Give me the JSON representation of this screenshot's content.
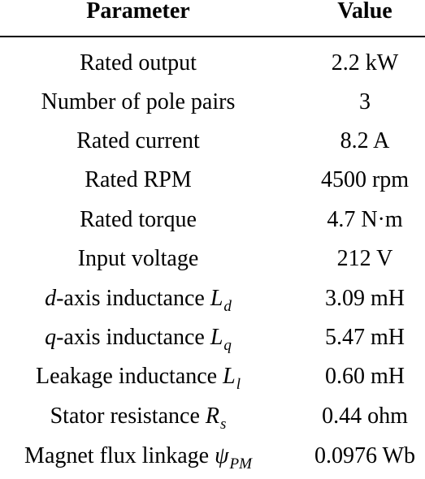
{
  "table": {
    "headers": [
      "Parameter",
      "Value"
    ],
    "rows": [
      {
        "param": "Rated output",
        "value": "2.2 kW"
      },
      {
        "param": "Number of pole pairs",
        "value": "3"
      },
      {
        "param": "Rated current",
        "value": "8.2 A"
      },
      {
        "param": "Rated RPM",
        "value": "4500 rpm"
      },
      {
        "param": "Rated torque",
        "value": "4.7 N·m"
      },
      {
        "param": "Input voltage",
        "value": "212 V"
      },
      {
        "param_prefix": "d",
        "param_text": "-axis inductance ",
        "param_sym": "L",
        "param_sub": "d",
        "value": "3.09 mH"
      },
      {
        "param_prefix": "q",
        "param_text": "-axis inductance ",
        "param_sym": "L",
        "param_sub": "q",
        "value": "5.47 mH"
      },
      {
        "param_text": "Leakage inductance ",
        "param_sym": "L",
        "param_sub": "l",
        "value": "0.60 mH"
      },
      {
        "param_text": "Stator resistance ",
        "param_sym": "R",
        "param_sub": "s",
        "value": "0.44 ohm"
      },
      {
        "param_text": "Magnet flux linkage ",
        "param_sym": "ψ",
        "param_sub": "PM",
        "value": "0.0976 Wb"
      }
    ]
  }
}
